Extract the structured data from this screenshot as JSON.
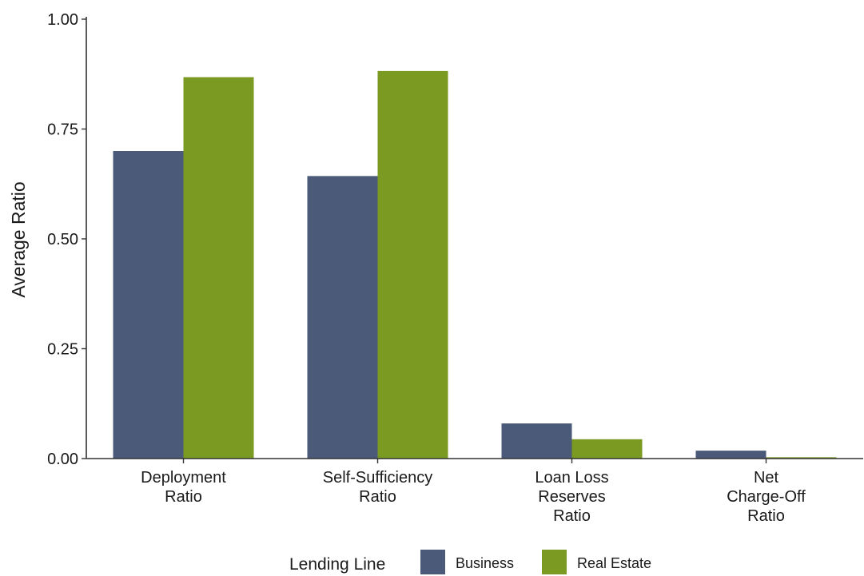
{
  "chart_data": {
    "type": "bar",
    "ylabel": "Average Ratio",
    "ylim": [
      0,
      1
    ],
    "yticks": [
      "0.00",
      "0.25",
      "0.50",
      "0.75",
      "1.00"
    ],
    "categories": [
      [
        "Deployment",
        "Ratio"
      ],
      [
        "Self-Sufficiency",
        "Ratio"
      ],
      [
        "Loan Loss",
        "Reserves",
        "Ratio"
      ],
      [
        "Net",
        "Charge-Off",
        "Ratio"
      ]
    ],
    "series": [
      {
        "name": "Business",
        "color": "#4a5a78",
        "values": [
          0.7,
          0.643,
          0.08,
          0.018
        ]
      },
      {
        "name": "Real Estate",
        "color": "#7a9a22",
        "values": [
          0.868,
          0.882,
          0.044,
          0.003
        ]
      }
    ],
    "legend": {
      "title": "Lending Line",
      "position": "bottom"
    },
    "grid": false
  }
}
